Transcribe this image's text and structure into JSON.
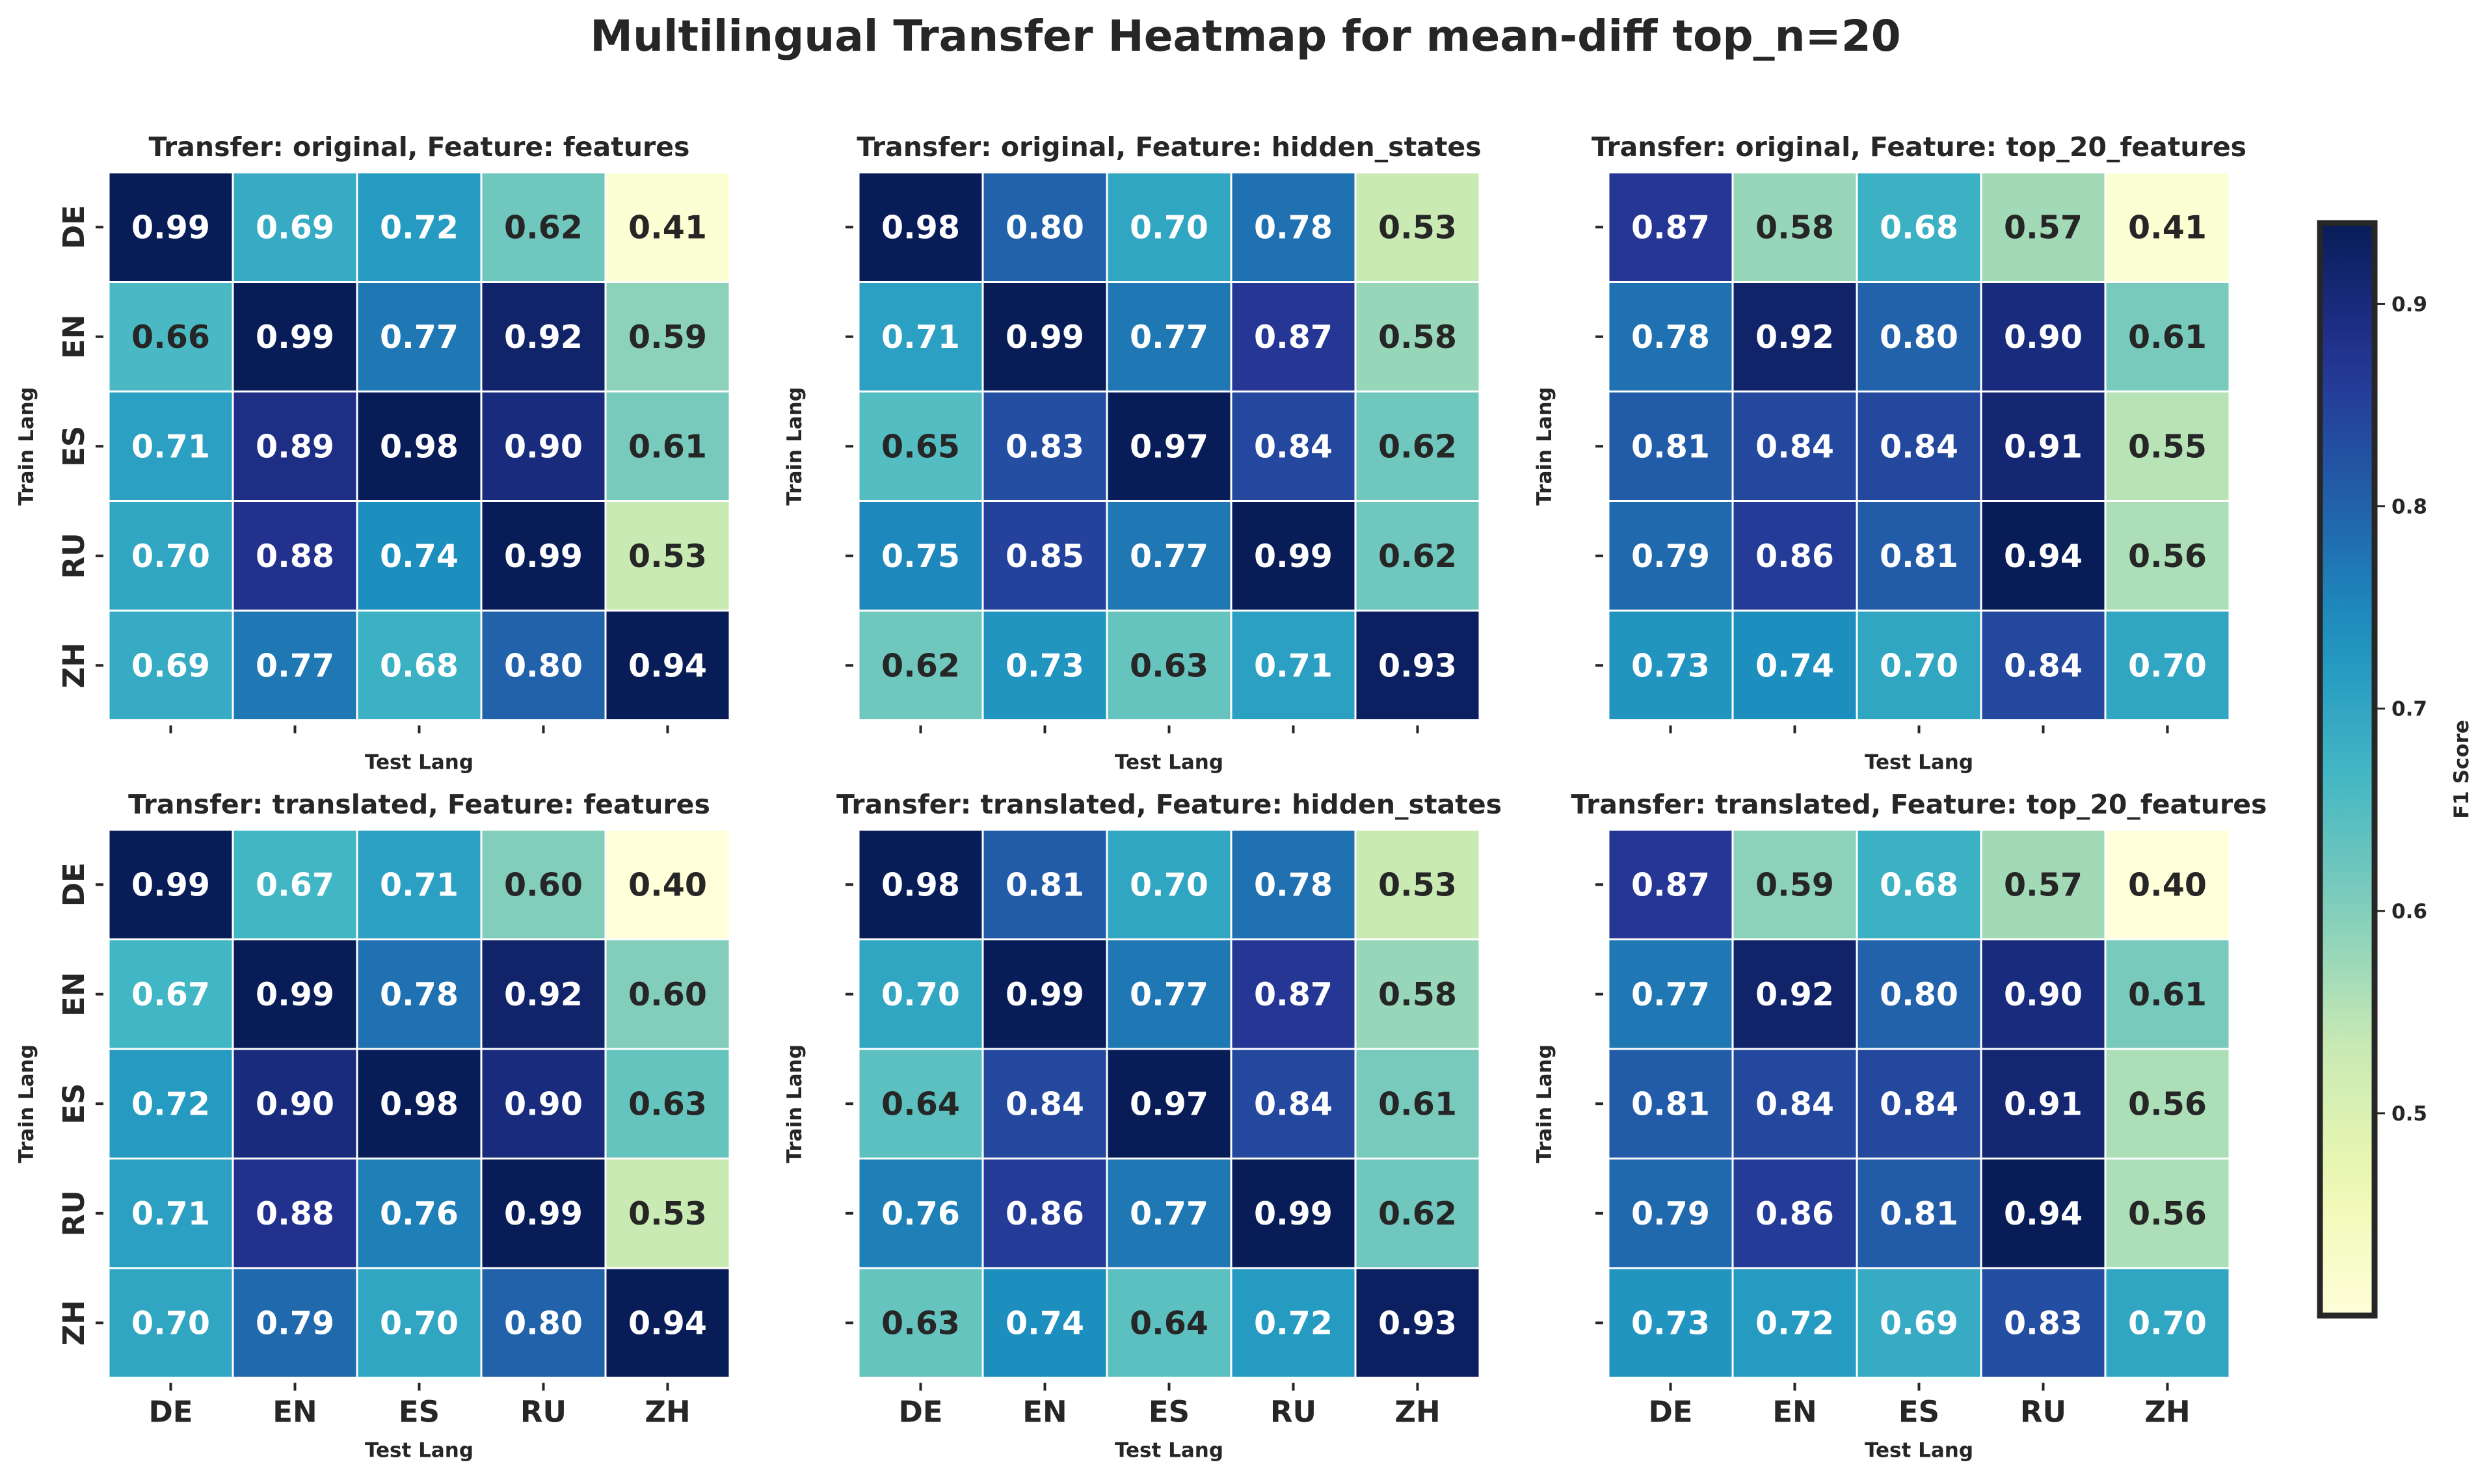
{
  "figure": {
    "title": "Multilingual Transfer Heatmap for mean-diff top_n=20"
  },
  "colorbar": {
    "label": "F1 Score",
    "range": [
      0.4,
      0.94
    ],
    "ticks": [
      "0.5",
      "0.6",
      "0.7",
      "0.8",
      "0.9"
    ],
    "tick_values": [
      0.5,
      0.6,
      0.7,
      0.8,
      0.9
    ],
    "colormap": "YlGnBu"
  },
  "chart_data": [
    {
      "type": "heatmap",
      "title": "Transfer: original, Feature: features",
      "xlabel": "Test Lang",
      "ylabel": "Train Lang",
      "x_categories": [
        "DE",
        "EN",
        "ES",
        "RU",
        "ZH"
      ],
      "y_categories": [
        "DE",
        "EN",
        "ES",
        "RU",
        "ZH"
      ],
      "values": [
        [
          0.99,
          0.69,
          0.72,
          0.62,
          0.41
        ],
        [
          0.66,
          0.99,
          0.77,
          0.92,
          0.59
        ],
        [
          0.71,
          0.89,
          0.98,
          0.9,
          0.61
        ],
        [
          0.7,
          0.88,
          0.74,
          0.99,
          0.53
        ],
        [
          0.69,
          0.77,
          0.68,
          0.8,
          0.94
        ]
      ]
    },
    {
      "type": "heatmap",
      "title": "Transfer: original, Feature: hidden_states",
      "xlabel": "Test Lang",
      "ylabel": "Train Lang",
      "x_categories": [
        "DE",
        "EN",
        "ES",
        "RU",
        "ZH"
      ],
      "y_categories": [
        "DE",
        "EN",
        "ES",
        "RU",
        "ZH"
      ],
      "values": [
        [
          0.98,
          0.8,
          0.7,
          0.78,
          0.53
        ],
        [
          0.71,
          0.99,
          0.77,
          0.87,
          0.58
        ],
        [
          0.65,
          0.83,
          0.97,
          0.84,
          0.62
        ],
        [
          0.75,
          0.85,
          0.77,
          0.99,
          0.62
        ],
        [
          0.62,
          0.73,
          0.63,
          0.71,
          0.93
        ]
      ]
    },
    {
      "type": "heatmap",
      "title": "Transfer: original, Feature: top_20_features",
      "xlabel": "Test Lang",
      "ylabel": "Train Lang",
      "x_categories": [
        "DE",
        "EN",
        "ES",
        "RU",
        "ZH"
      ],
      "y_categories": [
        "DE",
        "EN",
        "ES",
        "RU",
        "ZH"
      ],
      "values": [
        [
          0.87,
          0.58,
          0.68,
          0.57,
          0.41
        ],
        [
          0.78,
          0.92,
          0.8,
          0.9,
          0.61
        ],
        [
          0.81,
          0.84,
          0.84,
          0.91,
          0.55
        ],
        [
          0.79,
          0.86,
          0.81,
          0.94,
          0.56
        ],
        [
          0.73,
          0.74,
          0.7,
          0.84,
          0.7
        ]
      ]
    },
    {
      "type": "heatmap",
      "title": "Transfer: translated, Feature: features",
      "xlabel": "Test Lang",
      "ylabel": "Train Lang",
      "x_categories": [
        "DE",
        "EN",
        "ES",
        "RU",
        "ZH"
      ],
      "y_categories": [
        "DE",
        "EN",
        "ES",
        "RU",
        "ZH"
      ],
      "values": [
        [
          0.99,
          0.67,
          0.71,
          0.6,
          0.4
        ],
        [
          0.67,
          0.99,
          0.78,
          0.92,
          0.6
        ],
        [
          0.72,
          0.9,
          0.98,
          0.9,
          0.63
        ],
        [
          0.71,
          0.88,
          0.76,
          0.99,
          0.53
        ],
        [
          0.7,
          0.79,
          0.7,
          0.8,
          0.94
        ]
      ]
    },
    {
      "type": "heatmap",
      "title": "Transfer: translated, Feature: hidden_states",
      "xlabel": "Test Lang",
      "ylabel": "Train Lang",
      "x_categories": [
        "DE",
        "EN",
        "ES",
        "RU",
        "ZH"
      ],
      "y_categories": [
        "DE",
        "EN",
        "ES",
        "RU",
        "ZH"
      ],
      "values": [
        [
          0.98,
          0.81,
          0.7,
          0.78,
          0.53
        ],
        [
          0.7,
          0.99,
          0.77,
          0.87,
          0.58
        ],
        [
          0.64,
          0.84,
          0.97,
          0.84,
          0.61
        ],
        [
          0.76,
          0.86,
          0.77,
          0.99,
          0.62
        ],
        [
          0.63,
          0.74,
          0.64,
          0.72,
          0.93
        ]
      ]
    },
    {
      "type": "heatmap",
      "title": "Transfer: translated, Feature: top_20_features",
      "xlabel": "Test Lang",
      "ylabel": "Train Lang",
      "x_categories": [
        "DE",
        "EN",
        "ES",
        "RU",
        "ZH"
      ],
      "y_categories": [
        "DE",
        "EN",
        "ES",
        "RU",
        "ZH"
      ],
      "values": [
        [
          0.87,
          0.59,
          0.68,
          0.57,
          0.4
        ],
        [
          0.77,
          0.92,
          0.8,
          0.9,
          0.61
        ],
        [
          0.81,
          0.84,
          0.84,
          0.91,
          0.56
        ],
        [
          0.79,
          0.86,
          0.81,
          0.94,
          0.56
        ],
        [
          0.73,
          0.72,
          0.69,
          0.83,
          0.7
        ]
      ]
    }
  ]
}
